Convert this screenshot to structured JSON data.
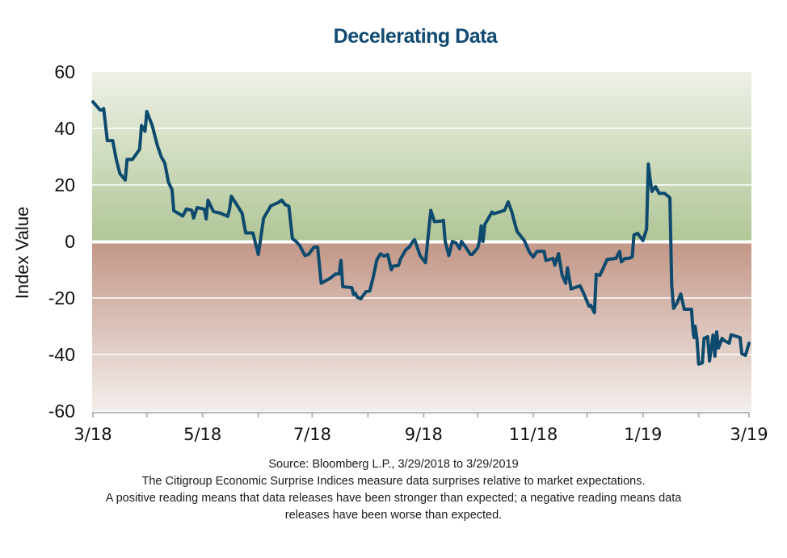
{
  "chart_data": {
    "type": "line",
    "title": "Decelerating Data",
    "xlabel": "",
    "ylabel": "Index Value",
    "ylim": [
      -60,
      60
    ],
    "yticks": [
      "60",
      "40",
      "20",
      "0",
      "-20",
      "-40",
      "-60"
    ],
    "ytick_values": [
      60,
      40,
      20,
      0,
      -20,
      -40,
      -60
    ],
    "x_unit": "days since 3/29/2018",
    "xlim": [
      0,
      365
    ],
    "xtick_labels": [
      "3/18",
      "5/18",
      "7/18",
      "9/18",
      "11/18",
      "1/19",
      "3/19"
    ],
    "xtick_label_positions_days": [
      0,
      61,
      122,
      184,
      245,
      306,
      365
    ],
    "xminor_tick_positions_days": [
      0,
      30,
      61,
      92,
      122,
      153,
      184,
      214,
      245,
      275,
      306,
      337,
      365
    ],
    "grid": true,
    "legend": "none",
    "background_bands": [
      {
        "name": "positive",
        "range": [
          0,
          60
        ],
        "color_top": "#eef1e7",
        "color_bottom": "#b1c697"
      },
      {
        "name": "negative",
        "range": [
          -60,
          0
        ],
        "color_top": "#c39788",
        "color_bottom": "#f3eeeb"
      }
    ],
    "series": [
      {
        "name": "Citigroup Economic Surprise Index",
        "color": "#0d4a6d",
        "x": [
          0,
          4,
          5,
          6,
          8,
          11,
          13,
          15,
          18,
          19,
          22,
          26,
          27,
          29,
          30,
          33,
          35,
          36,
          38,
          40,
          42,
          44,
          45,
          50,
          52,
          55,
          56,
          58,
          62,
          63,
          64,
          67,
          71,
          75,
          76,
          77,
          80,
          83,
          85,
          89,
          92,
          95,
          99,
          103,
          105,
          107,
          109,
          111,
          113,
          115,
          118,
          120,
          123,
          125,
          127,
          132,
          135,
          137,
          138,
          139,
          144,
          145,
          146,
          147,
          149,
          152,
          154,
          156,
          158,
          160,
          162,
          164,
          166,
          167,
          170,
          171,
          174,
          176,
          178,
          179,
          182,
          185,
          187,
          188,
          190,
          194,
          195,
          196,
          198,
          200,
          202,
          204,
          205,
          207,
          210,
          211,
          214,
          215,
          216,
          217,
          218,
          222,
          223,
          229,
          231,
          233,
          234,
          236,
          240,
          243,
          245,
          247,
          251,
          252,
          256,
          257,
          259,
          261,
          263,
          264,
          266,
          271,
          273,
          276,
          277,
          279,
          280,
          282,
          284,
          286,
          291,
          293,
          294,
          296,
          298,
          300,
          301,
          303,
          306,
          308,
          309,
          310,
          311,
          313,
          315,
          318,
          320,
          321,
          322,
          323,
          325,
          327,
          329,
          333,
          334,
          334.5,
          335,
          336,
          337,
          339,
          340,
          342,
          343,
          345,
          346,
          347,
          348,
          350,
          351,
          354,
          355,
          360,
          361,
          363,
          365
        ],
        "values": [
          49.4,
          46.5,
          46.5,
          47,
          35.7,
          35.7,
          29,
          24,
          21.7,
          29,
          29,
          32.6,
          41,
          39,
          46,
          41,
          36,
          33.7,
          30,
          27.7,
          21,
          18.3,
          10.9,
          9,
          11.5,
          11,
          8.3,
          12,
          11.4,
          8,
          14.6,
          10.6,
          10,
          8.9,
          11.4,
          16,
          13,
          10,
          3,
          3,
          -4.6,
          8.3,
          12.6,
          13.7,
          14.6,
          13,
          12.5,
          1,
          0,
          -1.4,
          -5,
          -4.5,
          -2,
          -2,
          -14.8,
          -13,
          -11.5,
          -11.5,
          -6.7,
          -16,
          -16.3,
          -18.8,
          -18.3,
          -19.7,
          -20.3,
          -17.7,
          -17.5,
          -12.5,
          -6.4,
          -4.4,
          -5.2,
          -4.6,
          -10,
          -8.7,
          -8.5,
          -6.4,
          -3,
          -2,
          0,
          0.6,
          -5,
          -7.5,
          5,
          11,
          7,
          7.2,
          7.5,
          0,
          -5,
          0,
          -0.5,
          -2.6,
          0,
          -1.7,
          -4.6,
          -4.6,
          -2.3,
          0,
          5.5,
          0,
          6,
          10.4,
          9.8,
          11,
          14,
          10.6,
          8,
          3.5,
          0.3,
          -4,
          -5.5,
          -3.5,
          -3.5,
          -6.7,
          -6,
          -8.4,
          -4.3,
          -11.8,
          -14.8,
          -9.3,
          -16.8,
          -15.7,
          -18.3,
          -22.9,
          -22.6,
          -25.2,
          -11.6,
          -12,
          -9.3,
          -6.4,
          -6,
          -3.5,
          -7.2,
          -6,
          -6,
          -5.5,
          2.3,
          2.9,
          0.3,
          4.3,
          27.4,
          22,
          17.7,
          19.4,
          17,
          17,
          16,
          15.4,
          -15.4,
          -23.7,
          -21.7,
          -18.6,
          -24,
          -24,
          -32.6,
          -34,
          -30,
          -34.3,
          -43.4,
          -43,
          -34.3,
          -33.7,
          -42.3,
          -33.1,
          -40.6,
          -32,
          -37.7,
          -34.3,
          -35,
          -36,
          -33,
          -34,
          -39.7,
          -40.3,
          -36
        ]
      }
    ]
  },
  "notes": {
    "source": "Source: Bloomberg L.P., 3/29/2018 to 3/29/2019",
    "line1": "The Citigroup Economic Surprise Indices measure data surprises relative to market expectations.",
    "line2": "A positive reading means that data releases have been stronger than expected; a negative reading means data",
    "line3": "releases have been worse than expected."
  }
}
